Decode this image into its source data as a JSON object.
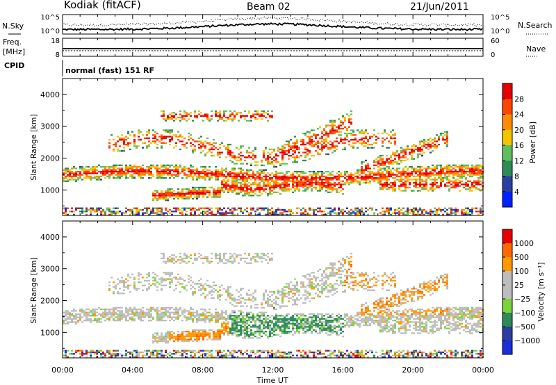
{
  "header": {
    "station": "Kodiak (fitACF)",
    "beam": "Beam 02",
    "date": "21/Jun/2011"
  },
  "noise_panel": {
    "left_label": "N.Sky",
    "right_label": "N.Search",
    "left_ticks": [
      "10^5",
      "10^0"
    ],
    "right_ticks": [
      "10^5",
      "10^0"
    ]
  },
  "freq_panel": {
    "left_label_1": "Freq.",
    "left_label_2": "[MHz]",
    "right_label": "Nave",
    "left_ticks": [
      "18",
      "8"
    ],
    "right_ticks": [
      "60",
      "0"
    ]
  },
  "cpid": {
    "label": "CPID",
    "mode": "normal (fast) 151 RF"
  },
  "colors": {
    "power_scale": [
      "#0022ff",
      "#2a3fa0",
      "#2e8b57",
      "#5fbf5f",
      "#f5c400",
      "#ff8c00",
      "#ff4500",
      "#e60000"
    ],
    "velocity_scale": [
      "#1a2ed6",
      "#2a3fa0",
      "#2e8b57",
      "#7cd23a",
      "#bdbdbd",
      "#bdbdbd",
      "#ff9900",
      "#ff6a00",
      "#e60000"
    ]
  },
  "chart_data": [
    {
      "type": "heatmap",
      "name": "power",
      "xlabel": "",
      "ylabel": "Slant Range [km]",
      "xlim": [
        "00:00",
        "24:00"
      ],
      "ylim": [
        200,
        4500
      ],
      "y_ticks": [
        "1000",
        "2000",
        "3000",
        "4000"
      ],
      "colorbar_label": "Power [dB]",
      "colorbar_ticks": [
        "4",
        "8",
        "12",
        "16",
        "20",
        "24",
        "28"
      ]
    },
    {
      "type": "heatmap",
      "name": "velocity",
      "xlabel": "Time UT",
      "ylabel": "Slant Range [km]",
      "xlim": [
        "00:00",
        "24:00"
      ],
      "ylim": [
        200,
        4500
      ],
      "x_ticks": [
        "00:00",
        "04:00",
        "08:00",
        "12:00",
        "16:00",
        "20:00",
        "00:00"
      ],
      "y_ticks": [
        "1000",
        "2000",
        "3000",
        "4000"
      ],
      "colorbar_label": "Velocity [m s⁻¹]",
      "colorbar_ticks": [
        "1000",
        "500",
        "100",
        "25",
        "−25",
        "−100",
        "−500",
        "−1000"
      ]
    }
  ]
}
